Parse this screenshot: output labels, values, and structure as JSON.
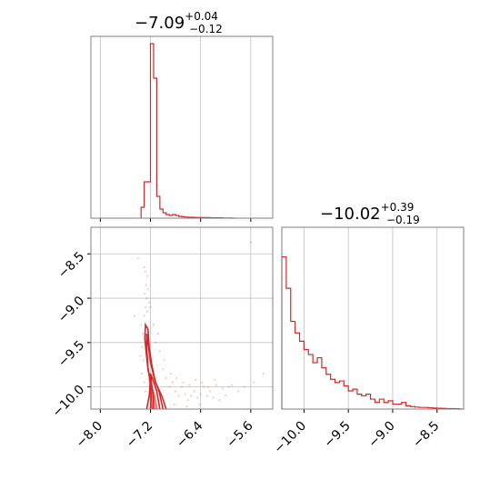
{
  "chart_data": [
    {
      "type": "histogram",
      "panel": "top-left",
      "title": {
        "value": "−7.09",
        "plus": "+0.04",
        "minus": "−0.12"
      },
      "xlim": [
        -8.15,
        -5.25
      ],
      "xticks": [
        -8.0,
        -7.2,
        -6.4,
        -5.6
      ],
      "bins": {
        "start": -7.35,
        "width": 0.05,
        "heights": [
          0.06,
          0.2,
          0.2,
          0.96,
          0.77,
          0.12,
          0.05,
          0.03,
          0.02,
          0.015,
          0.02,
          0.015,
          0.01,
          0.008,
          0.006,
          0.005,
          0.005,
          0.004,
          0.004,
          0.003,
          0.003,
          0.003,
          0.002,
          0.002,
          0.002,
          0.002,
          0.001,
          0.001,
          0.001,
          0.0
        ]
      }
    },
    {
      "type": "scatter",
      "panel": "bottom-left",
      "xlim": [
        -8.15,
        -5.25
      ],
      "ylim": [
        -8.2,
        -10.25
      ],
      "xticks": [
        -8.0,
        -7.2,
        -6.4,
        -5.6
      ],
      "xtick_labels": [
        "−8.0",
        "−7.2",
        "−6.4",
        "−5.6"
      ],
      "yticks": [
        -8.5,
        -9.0,
        -9.5,
        -10.0
      ],
      "ytick_labels": [
        "−8.5",
        "−9.0",
        "−9.5",
        "−10.0"
      ],
      "contours": [
        [
          [
            -7.26,
            -10.25
          ],
          [
            -7.22,
            -10.1
          ],
          [
            -7.2,
            -9.95
          ],
          [
            -7.24,
            -9.8
          ],
          [
            -7.27,
            -9.6
          ],
          [
            -7.29,
            -9.45
          ],
          [
            -7.28,
            -9.3
          ],
          [
            -7.24,
            -9.35
          ],
          [
            -7.22,
            -9.55
          ],
          [
            -7.18,
            -9.75
          ],
          [
            -7.12,
            -9.95
          ],
          [
            -7.02,
            -10.1
          ],
          [
            -6.95,
            -10.25
          ]
        ],
        [
          [
            -7.2,
            -10.25
          ],
          [
            -7.19,
            -10.1
          ],
          [
            -7.2,
            -9.95
          ],
          [
            -7.24,
            -9.78
          ],
          [
            -7.26,
            -9.55
          ],
          [
            -7.26,
            -9.4
          ],
          [
            -7.24,
            -9.5
          ],
          [
            -7.2,
            -9.72
          ],
          [
            -7.14,
            -9.9
          ],
          [
            -7.06,
            -10.06
          ],
          [
            -7.0,
            -10.25
          ]
        ],
        [
          [
            -7.16,
            -10.25
          ],
          [
            -7.15,
            -10.12
          ],
          [
            -7.18,
            -9.98
          ],
          [
            -7.2,
            -9.85
          ],
          [
            -7.16,
            -9.92
          ],
          [
            -7.1,
            -10.05
          ],
          [
            -7.05,
            -10.25
          ]
        ]
      ],
      "points": [
        [
          -7.3,
          -8.65
        ],
        [
          -7.28,
          -8.7
        ],
        [
          -7.25,
          -8.75
        ],
        [
          -7.27,
          -8.85
        ],
        [
          -7.24,
          -8.9
        ],
        [
          -7.29,
          -8.95
        ],
        [
          -7.26,
          -9.0
        ],
        [
          -7.22,
          -9.05
        ],
        [
          -7.28,
          -9.1
        ],
        [
          -7.25,
          -9.15
        ],
        [
          -7.3,
          -9.2
        ],
        [
          -7.2,
          -9.1
        ],
        [
          -7.35,
          -9.3
        ],
        [
          -7.32,
          -9.4
        ],
        [
          -7.33,
          -9.55
        ],
        [
          -7.36,
          -9.65
        ],
        [
          -7.31,
          -9.7
        ],
        [
          -7.34,
          -9.85
        ],
        [
          -7.3,
          -9.95
        ],
        [
          -7.28,
          -10.05
        ],
        [
          -7.12,
          -9.5
        ],
        [
          -7.05,
          -9.6
        ],
        [
          -7.0,
          -9.8
        ],
        [
          -6.95,
          -9.9
        ],
        [
          -6.9,
          -10.0
        ],
        [
          -6.85,
          -9.95
        ],
        [
          -6.8,
          -10.05
        ],
        [
          -6.75,
          -10.1
        ],
        [
          -6.7,
          -10.0
        ],
        [
          -6.65,
          -10.08
        ],
        [
          -6.6,
          -10.15
        ],
        [
          -6.55,
          -10.1
        ],
        [
          -6.5,
          -10.05
        ],
        [
          -6.45,
          -10.12
        ],
        [
          -6.4,
          -10.08
        ],
        [
          -6.35,
          -10.0
        ],
        [
          -6.3,
          -10.1
        ],
        [
          -6.25,
          -10.05
        ],
        [
          -6.2,
          -10.12
        ],
        [
          -6.15,
          -9.98
        ],
        [
          -6.05,
          -10.02
        ],
        [
          -6.0,
          -10.1
        ],
        [
          -5.95,
          -10.0
        ],
        [
          -5.9,
          -9.98
        ],
        [
          -5.8,
          -10.05
        ],
        [
          -5.7,
          -10.0
        ],
        [
          -5.55,
          -9.95
        ],
        [
          -5.4,
          -9.85
        ],
        [
          -5.6,
          -8.37
        ],
        [
          -7.4,
          -8.55
        ],
        [
          -7.45,
          -9.2
        ],
        [
          -7.15,
          -9.3
        ],
        [
          -7.08,
          -9.4
        ],
        [
          -6.98,
          -9.7
        ],
        [
          -6.88,
          -9.85
        ],
        [
          -6.78,
          -9.9
        ],
        [
          -6.68,
          -9.95
        ],
        [
          -6.58,
          -9.98
        ],
        [
          -6.48,
          -9.92
        ],
        [
          -6.38,
          -9.95
        ],
        [
          -6.28,
          -10.0
        ],
        [
          -6.18,
          -9.92
        ],
        [
          -6.1,
          -10.15
        ],
        [
          -6.42,
          -10.2
        ],
        [
          -6.62,
          -10.22
        ],
        [
          -6.82,
          -10.2
        ]
      ]
    },
    {
      "type": "histogram",
      "panel": "bottom-right",
      "title": {
        "value": "−10.02",
        "plus": "+0.39",
        "minus": "−0.19"
      },
      "xlim": [
        -10.25,
        -8.2
      ],
      "xticks": [
        -10.0,
        -9.5,
        -9.0,
        -8.5
      ],
      "xtick_labels": [
        "−10.0",
        "−9.5",
        "−9.0",
        "−8.5"
      ],
      "bins": {
        "start": -10.25,
        "width": 0.05,
        "heights": [
          0.92,
          0.73,
          0.53,
          0.46,
          0.41,
          0.36,
          0.33,
          0.28,
          0.31,
          0.25,
          0.21,
          0.18,
          0.16,
          0.17,
          0.14,
          0.11,
          0.12,
          0.09,
          0.08,
          0.09,
          0.06,
          0.04,
          0.06,
          0.04,
          0.05,
          0.03,
          0.03,
          0.04,
          0.02,
          0.015,
          0.012,
          0.01,
          0.01,
          0.008,
          0.006,
          0.005,
          0.004,
          0.003,
          0.003,
          0.002,
          0.0
        ]
      }
    }
  ]
}
